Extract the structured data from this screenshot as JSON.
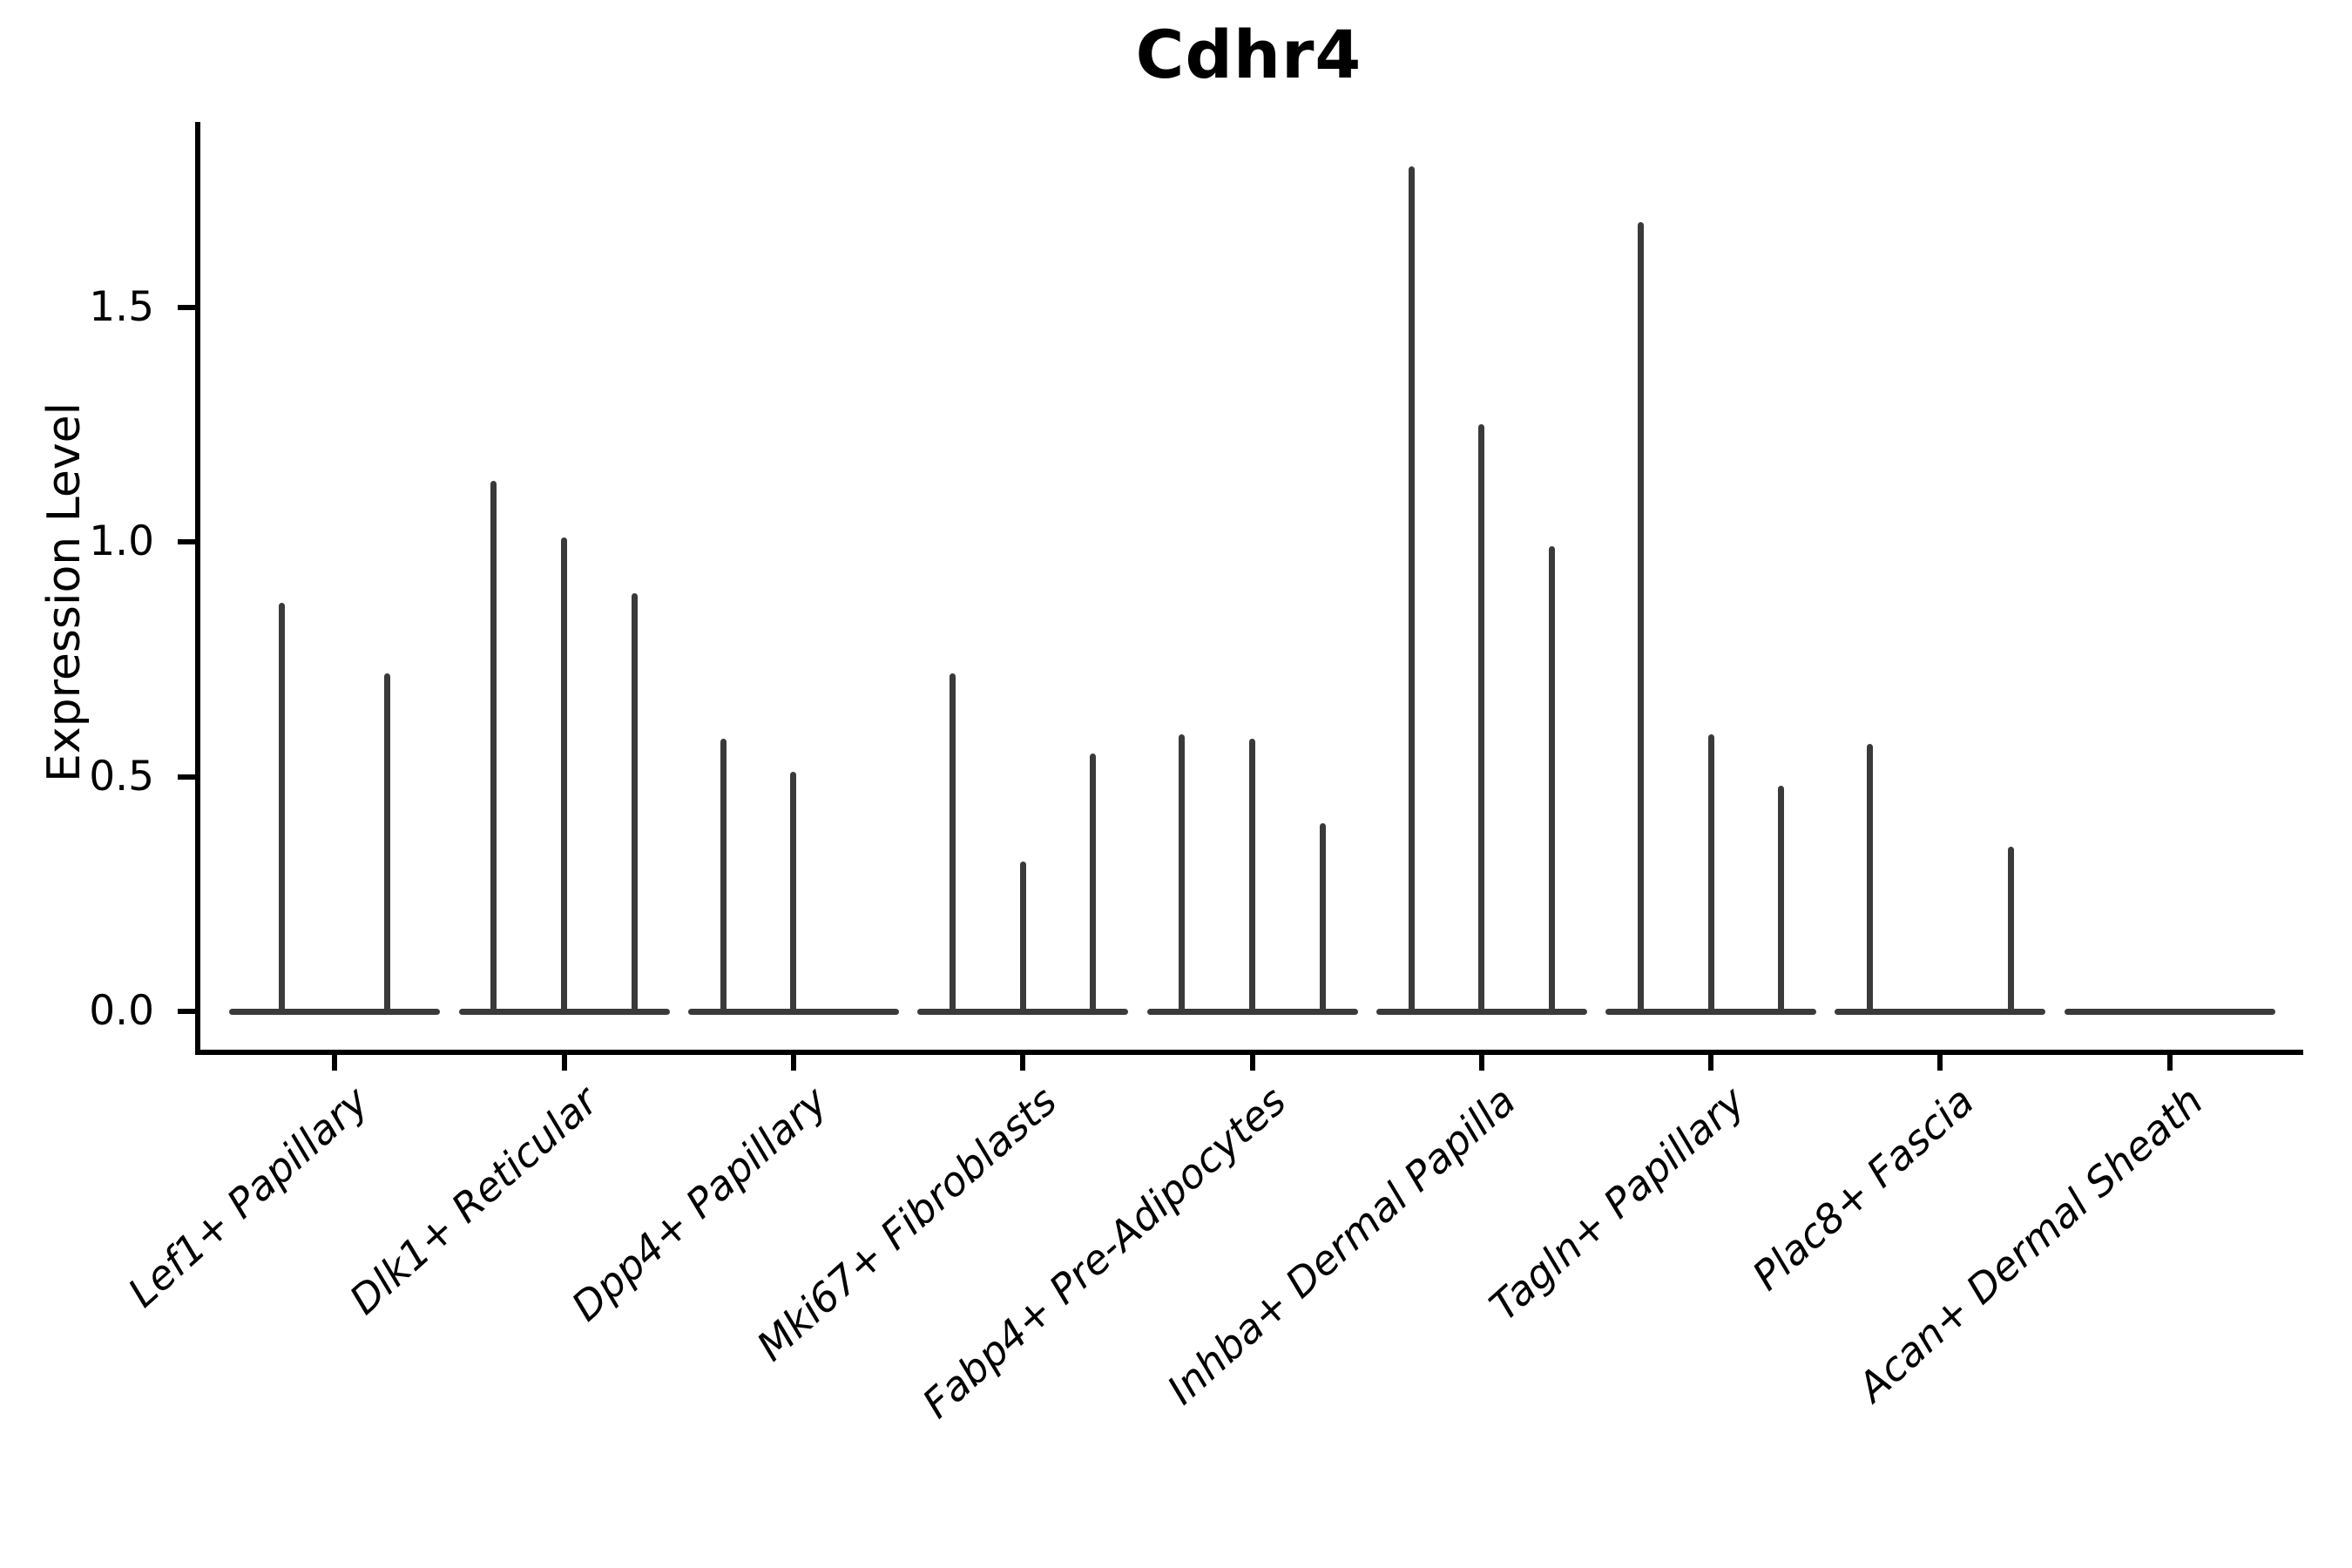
{
  "figure": {
    "background_color": "#ffffff",
    "text_color": "#000000",
    "violin_line_color": "#3a3a3a"
  },
  "chart_data": {
    "type": "violin",
    "title": "Cdhr4",
    "xlabel": "",
    "ylabel": "Expression Level",
    "grid": false,
    "legend": "none",
    "ylim": [
      -0.09,
      1.89
    ],
    "yticks": [
      0.0,
      0.5,
      1.0,
      1.5
    ],
    "ytick_labels": [
      "0.0",
      "0.5",
      "1.0",
      "1.5"
    ],
    "categories": [
      "Lef1+ Papillary",
      "Dlk1+ Reticular",
      "Dpp4+ Papillary",
      "Mki67+ Fibroblasts",
      "Fabp4+ Pre-Adipocytes",
      "Inhba+ Dermal Papilla",
      "Tagln+ Papillary",
      "Plac8+ Fascia",
      "Acan+ Dermal Sheath"
    ],
    "series_note": "Each category holds narrow violins collapsed at 0; value listed is the max expression reached by each violin spike (0 = flat violin, no spike).",
    "violin_max_values": [
      [
        0.87,
        0.72
      ],
      [
        1.13,
        1.01,
        0.89
      ],
      [
        0.58,
        0.51,
        0.0
      ],
      [
        0.72,
        0.32,
        0.55
      ],
      [
        0.59,
        0.58,
        0.4
      ],
      [
        1.8,
        1.25,
        0.99
      ],
      [
        1.68,
        0.59,
        0.48
      ],
      [
        0.57,
        0.0,
        0.35
      ],
      [
        0.0,
        0.0,
        0.0
      ]
    ]
  }
}
